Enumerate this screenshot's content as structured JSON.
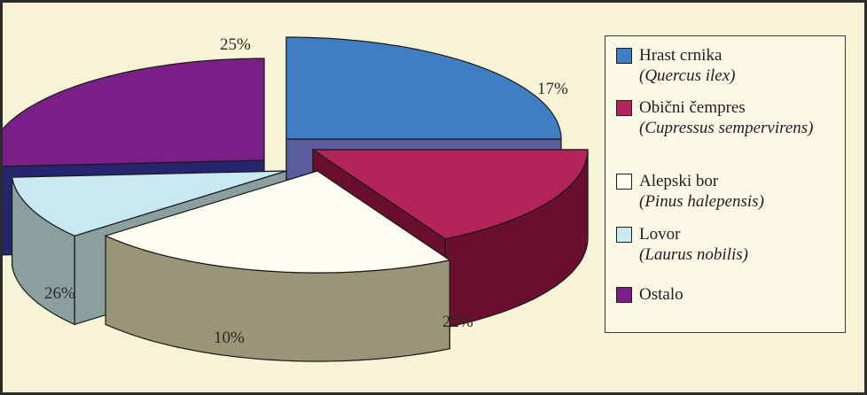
{
  "chart_data": {
    "type": "pie",
    "style": "3d-exploded",
    "title": "",
    "legend_position": "right",
    "slices": [
      {
        "name": "Hrast crnika",
        "latin": "Quercus ilex",
        "value": 25,
        "label": "25%",
        "color": "#3f7ec5"
      },
      {
        "name": "Obični čempres",
        "latin": "Cupressus sempervirens",
        "value": 17,
        "label": "17%",
        "color": "#b2245a"
      },
      {
        "name": "Alepski bor",
        "latin": "Pinus halepensis",
        "value": 22,
        "label": "22%",
        "color": "#fffcf2"
      },
      {
        "name": "Lovor",
        "latin": "Laurus nobilis",
        "value": 10,
        "label": "10%",
        "color": "#c8e9f2"
      },
      {
        "name": "Ostalo",
        "latin": "",
        "value": 26,
        "label": "26%",
        "color": "#7a1f88"
      }
    ],
    "side_colors": [
      "#5a5c9c",
      "#6a0f2e",
      "#9a9576",
      "#8c9f9f",
      "#262670"
    ]
  }
}
